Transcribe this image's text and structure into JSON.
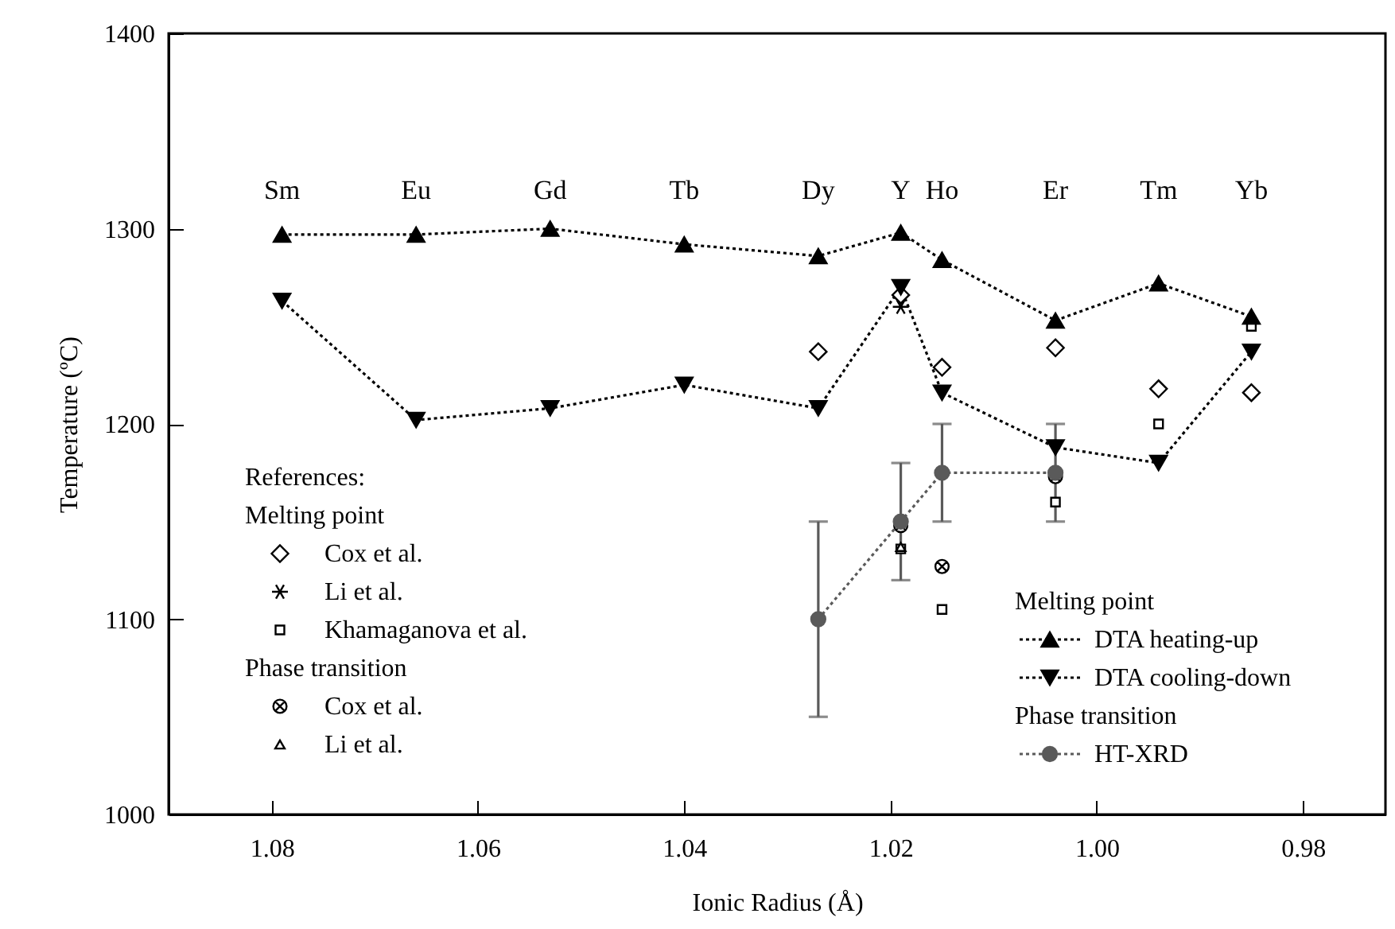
{
  "chart_data": {
    "type": "line",
    "xlabel": "Ionic Radius (Å)",
    "ylabel": "Temperature (ºC)",
    "xlim": [
      1.09,
      0.972
    ],
    "xticks": [
      1.08,
      1.06,
      1.04,
      1.02,
      {
        "value": 1.0,
        "label": "1.00"
      },
      0.98
    ],
    "ylim": [
      1000,
      1400
    ],
    "yticks": [
      1000,
      1100,
      1200,
      1300,
      1400
    ],
    "legend": "bottom",
    "series": [
      {
        "name": "DTA heating-up",
        "type": "line",
        "color": "#000000",
        "marker": "triangle",
        "line_style": "dotted",
        "x": [
          1.079,
          1.066,
          1.053,
          1.04,
          1.027,
          1.019,
          1.015,
          1.004,
          0.994,
          0.985
        ],
        "values": [
          1297,
          1297,
          1300,
          1292,
          1286,
          1298,
          1284,
          1253,
          1272,
          1255
        ]
      },
      {
        "name": "DTA cooling-down",
        "type": "line",
        "color": "#000000",
        "marker": "triangle-down",
        "line_style": "dotted",
        "x": [
          1.079,
          1.066,
          1.053,
          1.04,
          1.027,
          1.019,
          1.015,
          1.004,
          0.994,
          0.985
        ],
        "values": [
          1263,
          1202,
          1208,
          1220,
          1208,
          1270,
          1216,
          1188,
          1180,
          1237
        ]
      },
      {
        "name": "HT-XRD",
        "type": "line",
        "color": "#5a5a5a",
        "marker": "circle",
        "line_style": "dotted",
        "x": [
          1.027,
          1.019,
          1.015,
          1.004
        ],
        "values": [
          1100,
          1150,
          1175,
          1175
        ],
        "errors": [
          50,
          30,
          25,
          25
        ]
      },
      {
        "name": "Cox et al.",
        "type": "scatter",
        "color": "#000000",
        "marker": "diamond",
        "x": [
          1.027,
          1.019,
          1.015,
          1.004,
          0.994,
          0.985
        ],
        "values": [
          1237,
          1266,
          1229,
          1239,
          1218,
          1216
        ]
      },
      {
        "name": "Li  et al.",
        "type": "scatter",
        "color": "#000000",
        "x": [
          1.019
        ],
        "values": [
          1260
        ]
      },
      {
        "name": "Khamaganova et al.",
        "type": "scatter",
        "color": "#000000",
        "marker": "square",
        "x": [
          1.019,
          1.015,
          1.004,
          0.994,
          0.985
        ],
        "values": [
          1136,
          1105,
          1160,
          1200,
          1250
        ]
      },
      {
        "name": "Cox et al.",
        "type": "scatter",
        "color": "#000000",
        "marker": "cross",
        "x": [
          1.019,
          1.015,
          1.004
        ],
        "values": [
          1148,
          1127,
          1173
        ]
      },
      {
        "name": "Li et al.",
        "type": "scatter",
        "color": "#000000",
        "marker": "triangle",
        "x": [
          1.019
        ],
        "values": [
          1137
        ]
      }
    ],
    "annotations": [
      "Sm",
      "Eu",
      "Gd",
      "Tb",
      "Dy",
      "Y",
      "Ho",
      "Er",
      "Tm",
      "Yb",
      "References:",
      "Melting point",
      "Phase transition",
      "Melting point",
      "Phase transition"
    ]
  }
}
